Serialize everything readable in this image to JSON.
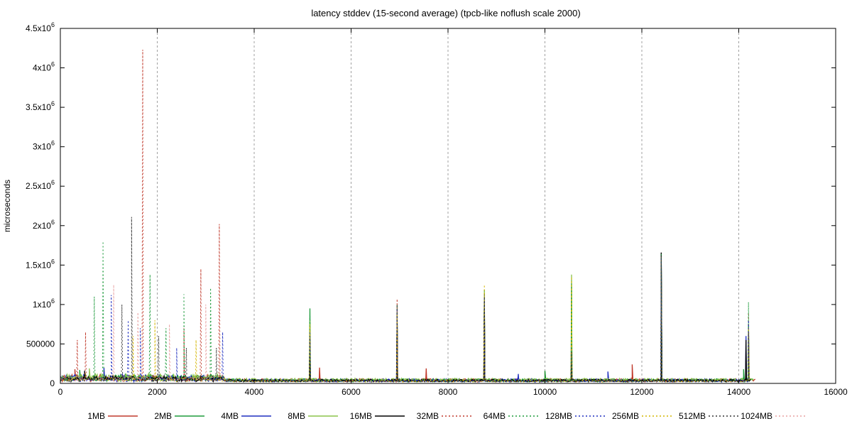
{
  "chart_data": {
    "type": "line",
    "title": "latency stddev (15-second average) (tpcb-like noflush scale 2000)",
    "xlabel": "",
    "ylabel": "microseconds",
    "xlim": [
      0,
      16000
    ],
    "ylim": [
      0,
      4500000
    ],
    "grid": "vertical dashed lines at x major ticks",
    "legend_position": "bottom",
    "x_ticks": [
      0,
      2000,
      4000,
      6000,
      8000,
      10000,
      12000,
      14000,
      16000
    ],
    "x_tick_labels": [
      "0",
      "2000",
      "4000",
      "6000",
      "8000",
      "10000",
      "12000",
      "14000",
      "16000"
    ],
    "y_ticks": [
      0,
      500000,
      1000000,
      1500000,
      2000000,
      2500000,
      3000000,
      3500000,
      4000000,
      4500000
    ],
    "y_tick_labels": [
      {
        "mant": "0",
        "exp": ""
      },
      {
        "mant": "500000",
        "exp": ""
      },
      {
        "mant": "1x10",
        "exp": "6"
      },
      {
        "mant": "1.5x10",
        "exp": "6"
      },
      {
        "mant": "2x10",
        "exp": "6"
      },
      {
        "mant": "2.5x10",
        "exp": "6"
      },
      {
        "mant": "3x10",
        "exp": "6"
      },
      {
        "mant": "3.5x10",
        "exp": "6"
      },
      {
        "mant": "4x10",
        "exp": "6"
      },
      {
        "mant": "4.5x10",
        "exp": "6"
      }
    ],
    "series": [
      {
        "name": "1MB",
        "color": "#c0392b",
        "dashed": false,
        "x_end": 14350,
        "baseline": 60000,
        "noise": 35000,
        "spikes": [
          [
            300,
            180000
          ],
          [
            900,
            160000
          ],
          [
            5150,
            650000
          ],
          [
            5350,
            200000
          ],
          [
            6950,
            850000
          ],
          [
            7550,
            190000
          ],
          [
            8750,
            1100000
          ],
          [
            10000,
            150000
          ],
          [
            10550,
            350000
          ],
          [
            11800,
            240000
          ],
          [
            12400,
            1600000
          ],
          [
            14150,
            450000
          ]
        ]
      },
      {
        "name": "2MB",
        "color": "#1e9b3c",
        "dashed": false,
        "x_end": 14300,
        "baseline": 58000,
        "noise": 35000,
        "spikes": [
          [
            400,
            170000
          ],
          [
            5150,
            950000
          ],
          [
            6950,
            900000
          ],
          [
            8750,
            1150000
          ],
          [
            10000,
            160000
          ],
          [
            10550,
            1250000
          ],
          [
            12400,
            1650000
          ],
          [
            14100,
            180000
          ],
          [
            14200,
            750000
          ]
        ]
      },
      {
        "name": "4MB",
        "color": "#1f2fbf",
        "dashed": false,
        "x_end": 14250,
        "baseline": 55000,
        "noise": 35000,
        "spikes": [
          [
            900,
            200000
          ],
          [
            5150,
            600000
          ],
          [
            6950,
            880000
          ],
          [
            8750,
            1000000
          ],
          [
            9450,
            120000
          ],
          [
            10550,
            400000
          ],
          [
            11300,
            150000
          ],
          [
            12400,
            1620000
          ],
          [
            14150,
            600000
          ]
        ]
      },
      {
        "name": "8MB",
        "color": "#8bc34a",
        "dashed": false,
        "x_end": 14300,
        "baseline": 60000,
        "noise": 40000,
        "spikes": [
          [
            600,
            190000
          ],
          [
            5150,
            800000
          ],
          [
            6950,
            870000
          ],
          [
            8750,
            1180000
          ],
          [
            10550,
            1380000
          ],
          [
            12400,
            1600000
          ],
          [
            14200,
            700000
          ]
        ]
      },
      {
        "name": "16MB",
        "color": "#000000",
        "dashed": false,
        "x_end": 14250,
        "baseline": 50000,
        "noise": 30000,
        "spikes": [
          [
            500,
            160000
          ],
          [
            5150,
            550000
          ],
          [
            6950,
            820000
          ],
          [
            8750,
            1050000
          ],
          [
            10550,
            250000
          ],
          [
            12400,
            1660000
          ],
          [
            14150,
            550000
          ]
        ]
      },
      {
        "name": "32MB",
        "color": "#c0392b",
        "dashed": true,
        "x_end": 14200,
        "baseline": 40000,
        "noise": 25000,
        "spikes": [
          [
            350,
            550000
          ],
          [
            520,
            650000
          ],
          [
            1700,
            4230000
          ],
          [
            2550,
            700000
          ],
          [
            2900,
            1450000
          ],
          [
            3280,
            2020000
          ],
          [
            5150,
            700000
          ],
          [
            6950,
            1070000
          ],
          [
            8750,
            1150000
          ],
          [
            10550,
            500000
          ],
          [
            12400,
            1620000
          ],
          [
            14200,
            900000
          ]
        ]
      },
      {
        "name": "64MB",
        "color": "#1e9b3c",
        "dashed": true,
        "x_end": 14200,
        "baseline": 40000,
        "noise": 25000,
        "spikes": [
          [
            700,
            1100000
          ],
          [
            880,
            1800000
          ],
          [
            1850,
            1380000
          ],
          [
            2180,
            700000
          ],
          [
            2550,
            1130000
          ],
          [
            3100,
            1210000
          ],
          [
            5150,
            900000
          ],
          [
            6950,
            1000000
          ],
          [
            8750,
            1200000
          ],
          [
            10550,
            1300000
          ],
          [
            12400,
            1640000
          ],
          [
            14200,
            1030000
          ]
        ]
      },
      {
        "name": "128MB",
        "color": "#1f2fbf",
        "dashed": true,
        "x_end": 14200,
        "baseline": 40000,
        "noise": 25000,
        "spikes": [
          [
            1050,
            1120000
          ],
          [
            1400,
            800000
          ],
          [
            1650,
            700000
          ],
          [
            2400,
            450000
          ],
          [
            3350,
            650000
          ],
          [
            5150,
            650000
          ],
          [
            6950,
            950000
          ],
          [
            8750,
            1100000
          ],
          [
            10550,
            450000
          ],
          [
            12400,
            1600000
          ],
          [
            14200,
            800000
          ]
        ]
      },
      {
        "name": "256MB",
        "color": "#d4b500",
        "dashed": true,
        "x_end": 14200,
        "baseline": 40000,
        "noise": 25000,
        "spikes": [
          [
            1500,
            600000
          ],
          [
            1950,
            800000
          ],
          [
            2800,
            550000
          ],
          [
            5150,
            750000
          ],
          [
            6950,
            900000
          ],
          [
            8750,
            1250000
          ],
          [
            10550,
            1350000
          ],
          [
            12400,
            1600000
          ],
          [
            14200,
            700000
          ]
        ]
      },
      {
        "name": "512MB",
        "color": "#333333",
        "dashed": true,
        "x_end": 14200,
        "baseline": 40000,
        "noise": 25000,
        "spikes": [
          [
            1270,
            1000000
          ],
          [
            1470,
            2110000
          ],
          [
            2030,
            600000
          ],
          [
            2600,
            450000
          ],
          [
            3220,
            450000
          ],
          [
            5150,
            600000
          ],
          [
            6950,
            1000000
          ],
          [
            8750,
            1100000
          ],
          [
            10550,
            400000
          ],
          [
            12400,
            1620000
          ],
          [
            14200,
            650000
          ]
        ]
      },
      {
        "name": "1024MB",
        "color": "#e8a0a0",
        "dashed": true,
        "x_end": 3400,
        "baseline": 60000,
        "noise": 30000,
        "spikes": [
          [
            1100,
            1250000
          ],
          [
            1600,
            900000
          ],
          [
            2250,
            750000
          ],
          [
            3000,
            1000000
          ]
        ]
      }
    ]
  }
}
